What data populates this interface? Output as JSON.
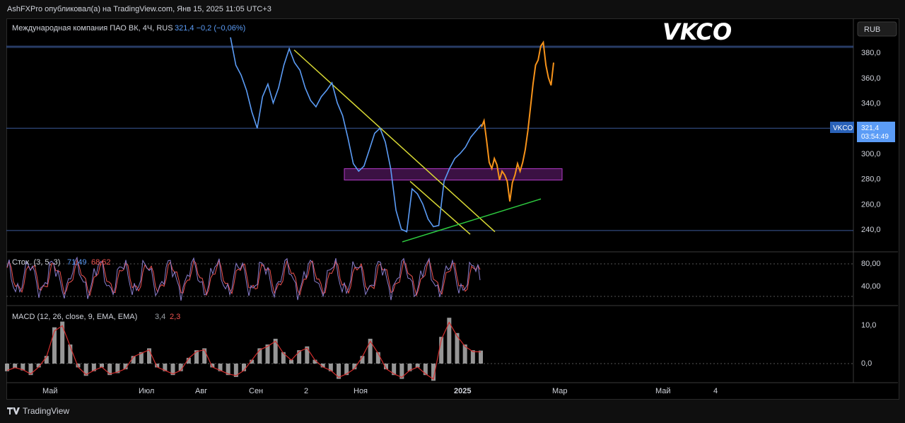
{
  "header": {
    "publisher_line": "AshFXPro опубликовал(а) на TradingView.com, Янв 15, 2025 11:05 UTC+3"
  },
  "footer": {
    "brand": "TradingView"
  },
  "chart": {
    "symbol_line": "Международная компания ПАО ВК, 4Ч, RUS",
    "price_info": "321,4 −0,2 (−0,06%)",
    "big_title": "VKCO",
    "currency_button": "RUB",
    "price_tag_symbol": "VKCO",
    "price_tag_value": "321,4",
    "price_tag_timer": "03:54:49"
  },
  "stoch": {
    "label": "Стох. (3, 5, 3)",
    "k": "71,49",
    "d": "68,62"
  },
  "macd": {
    "label": "MACD (12, 26, close, 9, EMA, EMA)",
    "hist": "3,4",
    "signal": "2,3"
  },
  "colors": {
    "price": "#5b9cf6",
    "forecast": "#f7931a",
    "trend": "#d9d934",
    "support": "#2ecc40",
    "zone": "#b43cc8",
    "stoch_k": "#5b9cf6",
    "stoch_d": "#ef5350",
    "macd_line": "#d32f2f"
  },
  "chart_data": [
    {
      "type": "line",
      "title": "VKCO",
      "y_axis_ticks": [
        "380,0",
        "360,0",
        "340,0",
        "320,0",
        "300,0",
        "280,0",
        "260,0",
        "240,0"
      ],
      "x_axis_ticks": [
        "Май",
        "Июл",
        "Авг",
        "Сен",
        "2",
        "Ноя",
        "2025",
        "Мар",
        "Май",
        "4"
      ],
      "ylim": [
        215,
        395
      ],
      "series": [
        {
          "values": [
            392,
            370,
            362,
            350,
            333,
            320,
            345,
            355,
            340,
            352,
            370,
            383,
            372,
            366,
            352,
            342,
            337,
            345,
            350,
            356,
            340,
            330,
            312,
            292,
            286,
            290,
            303,
            316,
            320,
            309,
            288,
            255,
            240,
            238,
            272,
            268,
            260,
            248,
            242,
            243,
            278,
            288,
            296,
            300,
            305,
            313,
            318,
            323
          ]
        }
      ],
      "forecast": [
        321,
        326,
        310,
        293,
        288,
        296,
        291,
        279,
        286,
        283,
        278,
        262,
        277,
        283,
        292,
        286,
        293,
        303,
        318,
        336,
        355,
        370,
        374,
        385,
        388,
        370,
        360,
        354,
        372
      ],
      "horizontal_lines": [
        385,
        384,
        320,
        239
      ],
      "support_zone": [
        279,
        288
      ],
      "trend_lines": [
        {
          "from": [
            382
          ],
          "to": [
            238
          ]
        },
        {
          "from": [
            278
          ],
          "to": [
            236
          ]
        }
      ],
      "support_line": {
        "from": [
          230
        ],
        "to": [
          264
        ]
      }
    },
    {
      "type": "line",
      "title": "Стох. (3, 5, 3)",
      "y_axis_ticks": [
        "80,00",
        "40,00"
      ],
      "ylim": [
        0,
        100
      ],
      "series": [
        {
          "name": "%K",
          "last": 71.49
        },
        {
          "name": "%D",
          "last": 68.62
        }
      ]
    },
    {
      "type": "bar",
      "title": "MACD (12, 26, close, 9, EMA, EMA)",
      "y_axis_ticks": [
        "10,0",
        "0,0"
      ],
      "ylim": [
        -5,
        13
      ],
      "series": [
        {
          "name": "Histogram",
          "last": 3.4,
          "values": [
            -2,
            -1.2,
            -1.8,
            -3,
            -1,
            2,
            9.5,
            11,
            5,
            -1,
            -3.2,
            -2,
            -1,
            -3,
            -2.5,
            -1.5,
            2,
            3,
            4,
            -1,
            -2,
            -3,
            -2,
            1.5,
            3.5,
            4,
            -1,
            -2,
            -3,
            -3.5,
            -2,
            1,
            4,
            5,
            6.5,
            3,
            1,
            3.5,
            4.5,
            1,
            -1,
            -2,
            -4,
            -3,
            -1.5,
            2,
            6.5,
            3,
            -1.5,
            -3,
            -4,
            -2,
            -1,
            -3,
            -4.5,
            7,
            12,
            8,
            5,
            3.5,
            3.4
          ]
        },
        {
          "name": "Signal",
          "last": 2.3
        }
      ]
    }
  ]
}
